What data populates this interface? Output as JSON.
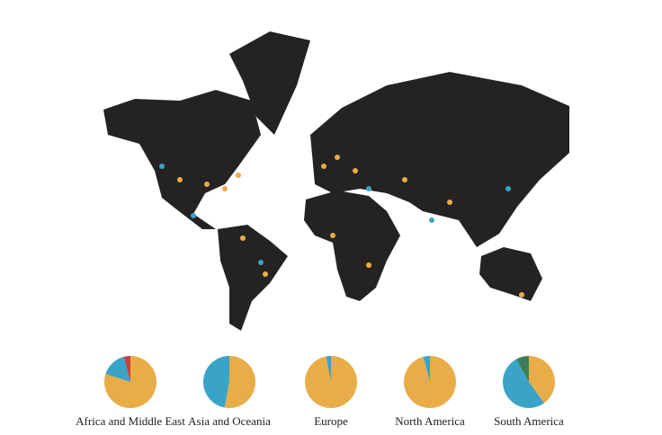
{
  "chart_data": [
    {
      "type": "pie",
      "title": "Africa and Middle East",
      "values": [
        80,
        16,
        4
      ],
      "colors": [
        "#e8ad47",
        "#3aa3c8",
        "#c8413b"
      ]
    },
    {
      "type": "pie",
      "title": "Asia and Oceania",
      "values": [
        53,
        47
      ],
      "colors": [
        "#e8ad47",
        "#3aa3c8"
      ]
    },
    {
      "type": "pie",
      "title": "Europe",
      "values": [
        97,
        3
      ],
      "colors": [
        "#e8ad47",
        "#3aa3c8"
      ]
    },
    {
      "type": "pie",
      "title": "North America",
      "values": [
        96,
        4
      ],
      "colors": [
        "#e8ad47",
        "#3aa3c8"
      ]
    },
    {
      "type": "pie",
      "title": "South America",
      "values": [
        40,
        52,
        8
      ],
      "colors": [
        "#e8ad47",
        "#3aa3c8",
        "#3e7d5a"
      ]
    }
  ]
}
